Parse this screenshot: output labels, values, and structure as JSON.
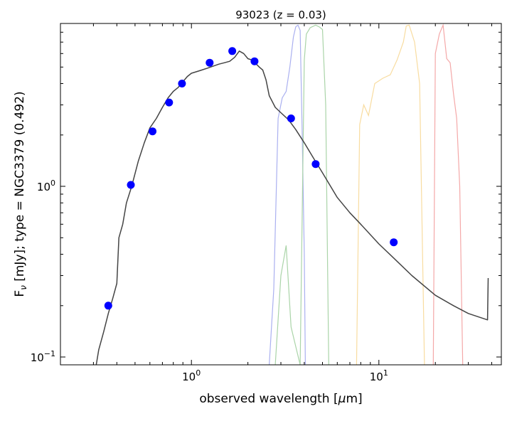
{
  "chart_data": {
    "type": "scatter",
    "title": "93023 (z = 0.03)",
    "xlabel_pre": "observed wavelength [",
    "xlabel_mu": "μ",
    "xlabel_post": "m]",
    "ylabel_pre": "F",
    "ylabel_sub": "ν",
    "ylabel_post": " [mJy];  type = NGC3379 (0.492)",
    "xscale": "log",
    "yscale": "log",
    "xlim": [
      0.2,
      45
    ],
    "ylim": [
      0.09,
      9
    ],
    "grid": false,
    "x_ticks": [
      {
        "value": 1,
        "label_base": "10",
        "label_exp": "0"
      },
      {
        "value": 10,
        "label_base": "10",
        "label_exp": "1"
      }
    ],
    "y_ticks": [
      {
        "value": 0.1,
        "label_base": "10",
        "label_exp": "−1"
      },
      {
        "value": 1,
        "label_base": "10",
        "label_exp": "0"
      }
    ],
    "photometry": {
      "color": "#0000ff",
      "x": [
        0.36,
        0.475,
        0.62,
        0.76,
        0.89,
        1.25,
        1.65,
        2.17,
        3.4,
        4.6,
        12.0
      ],
      "y": [
        0.2,
        1.02,
        2.1,
        3.1,
        4.0,
        5.3,
        6.2,
        5.4,
        2.5,
        1.35,
        0.47
      ]
    },
    "model": {
      "color": "#444444",
      "x": [
        0.305,
        0.32,
        0.34,
        0.36,
        0.38,
        0.4,
        0.41,
        0.43,
        0.45,
        0.48,
        0.52,
        0.56,
        0.6,
        0.65,
        0.7,
        0.75,
        0.8,
        0.85,
        0.9,
        0.95,
        1.0,
        1.1,
        1.2,
        1.3,
        1.4,
        1.5,
        1.6,
        1.7,
        1.8,
        1.9,
        2.0,
        2.1,
        2.2,
        2.3,
        2.4,
        2.5,
        2.6,
        2.8,
        3.0,
        3.3,
        3.6,
        4.0,
        4.5,
        5.0,
        6.0,
        7.0,
        8.0,
        10.0,
        12.0,
        15.0,
        20.0,
        25.0,
        30.0,
        35.0,
        38.0,
        38.3
      ],
      "y": [
        0.08,
        0.11,
        0.14,
        0.18,
        0.22,
        0.27,
        0.5,
        0.6,
        0.8,
        1.0,
        1.4,
        1.8,
        2.2,
        2.5,
        2.9,
        3.3,
        3.6,
        3.8,
        4.1,
        4.4,
        4.6,
        4.75,
        4.9,
        5.05,
        5.2,
        5.3,
        5.4,
        5.7,
        6.2,
        6.0,
        5.6,
        5.5,
        5.25,
        5.0,
        4.8,
        4.2,
        3.4,
        2.9,
        2.7,
        2.45,
        2.15,
        1.8,
        1.45,
        1.2,
        0.86,
        0.7,
        0.6,
        0.46,
        0.38,
        0.3,
        0.23,
        0.2,
        0.18,
        0.17,
        0.165,
        0.29
      ]
    },
    "filters": [
      {
        "color": "#aab0f0",
        "x": [
          2.6,
          2.75,
          2.9,
          3.05,
          3.2,
          3.35,
          3.5,
          3.6,
          3.7,
          3.8,
          3.9,
          4.0,
          4.05
        ],
        "y": [
          0.09,
          0.25,
          2.5,
          3.3,
          3.6,
          5.0,
          7.5,
          8.6,
          8.8,
          8.2,
          2.0,
          0.4,
          0.09
        ]
      },
      {
        "color": "#aad4a8",
        "x": [
          2.8,
          3.0,
          3.2,
          3.4,
          3.8,
          4.0,
          4.1,
          4.3,
          4.6,
          4.8,
          5.0,
          5.2,
          5.4
        ],
        "y": [
          0.09,
          0.3,
          0.45,
          0.15,
          0.09,
          5.5,
          7.8,
          8.5,
          8.8,
          8.6,
          8.3,
          3.0,
          0.09
        ]
      },
      {
        "color": "#f8dca0",
        "x": [
          7.6,
          7.9,
          8.3,
          8.8,
          9.5,
          10.5,
          11.5,
          12.5,
          13.5,
          14.0,
          14.5,
          15.5,
          16.5,
          17.5
        ],
        "y": [
          0.09,
          2.3,
          3.0,
          2.6,
          4.0,
          4.3,
          4.5,
          5.5,
          7.0,
          8.7,
          8.8,
          7.0,
          4.0,
          0.09
        ]
      },
      {
        "color": "#f4a8a8",
        "x": [
          19.5,
          20.0,
          21.0,
          22.0,
          22.5,
          23.0,
          24.0,
          25.0,
          26.0,
          27.0,
          28.0
        ],
        "y": [
          0.09,
          6.0,
          7.8,
          8.8,
          7.0,
          5.6,
          5.3,
          3.5,
          2.5,
          1.0,
          0.09
        ]
      }
    ]
  }
}
